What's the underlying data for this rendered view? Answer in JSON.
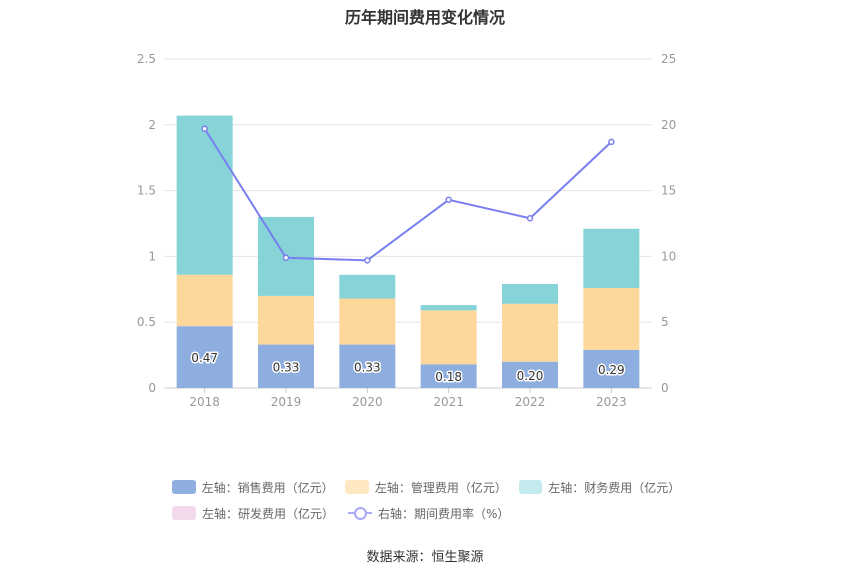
{
  "title": "历年期间费用变化情况",
  "source": "数据来源：恒生聚源",
  "chart_data": {
    "type": "bar",
    "stacked": true,
    "categories": [
      "2018",
      "2019",
      "2020",
      "2021",
      "2022",
      "2023"
    ],
    "left_axis": {
      "ticks": [
        "0",
        "0.5",
        "1",
        "1.5",
        "2",
        "2.5"
      ],
      "ylim": [
        0,
        2.5
      ]
    },
    "right_axis": {
      "ticks": [
        "0",
        "5",
        "10",
        "15",
        "20",
        "25"
      ],
      "ylim": [
        0,
        25
      ]
    },
    "grid": true,
    "legend_position": "bottom",
    "series": [
      {
        "name": "左轴：销售费用（亿元）",
        "axis": "left",
        "type": "bar",
        "color": "#8eaedf",
        "values": [
          0.47,
          0.33,
          0.33,
          0.18,
          0.2,
          0.29
        ],
        "labels": [
          "0.47",
          "0.33",
          "0.33",
          "0.18",
          "0.20",
          "0.29"
        ]
      },
      {
        "name": "左轴：管理费用（亿元）",
        "axis": "left",
        "type": "bar",
        "color": "#fdd89a",
        "values": [
          0.39,
          0.37,
          0.35,
          0.41,
          0.44,
          0.47
        ]
      },
      {
        "name": "左轴：财务费用（亿元）",
        "axis": "left",
        "type": "bar",
        "color": "#86d4d8",
        "values": [
          1.21,
          0.6,
          0.18,
          0.04,
          0.15,
          0.45
        ]
      },
      {
        "name": "左轴：研发费用（亿元）",
        "axis": "left",
        "type": "bar",
        "color": "#f3d9ec",
        "values": [
          0,
          0,
          0,
          0,
          0,
          0
        ]
      },
      {
        "name": "右轴：期间费用率（%）",
        "axis": "right",
        "type": "line",
        "color": "#7a7fef",
        "values": [
          19.7,
          9.9,
          9.7,
          14.3,
          12.9,
          18.7
        ]
      }
    ]
  }
}
